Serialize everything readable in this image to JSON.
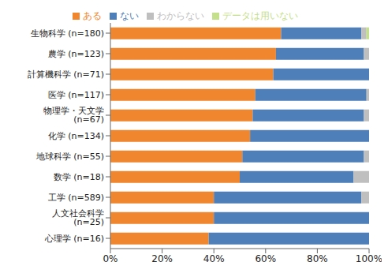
{
  "chart_data": {
    "type": "bar",
    "orientation": "horizontal",
    "stacked": true,
    "grid": false,
    "legend": "top",
    "categories": [
      "生物科学 (n=180)",
      "農学 (n=123)",
      "計算機科学 (n=71)",
      "医学 (n=117)",
      "物理学・天文学 (n=67)",
      "化学 (n=134)",
      "地球科学 (n=55)",
      "数学 (n=18)",
      "工学 (n=589)",
      "人文社会科学 (n=25)",
      "心理学 (n=16)"
    ],
    "series": [
      {
        "name": "ある",
        "color": "#f0862e",
        "values": [
          66,
          64,
          63,
          56,
          55,
          54,
          51,
          50,
          40,
          40,
          38
        ]
      },
      {
        "name": "ない",
        "color": "#4f7fb8",
        "values": [
          31,
          34,
          37,
          43,
          43,
          46,
          47,
          44,
          57,
          60,
          62
        ]
      },
      {
        "name": "わからない",
        "color": "#bfbfbf",
        "values": [
          2,
          2,
          0,
          1,
          2,
          0,
          2,
          6,
          3,
          0,
          0
        ]
      },
      {
        "name": "データは用いない",
        "color": "#c5e08a",
        "values": [
          1,
          0,
          0,
          0,
          0,
          0,
          0,
          0,
          0,
          0,
          0
        ]
      }
    ],
    "xlim": [
      0,
      100
    ],
    "xticks": [
      {
        "value": 0,
        "label": "0%"
      },
      {
        "value": 20,
        "label": "20%"
      },
      {
        "value": 40,
        "label": "40%"
      },
      {
        "value": 60,
        "label": "60%"
      },
      {
        "value": 80,
        "label": "80%"
      },
      {
        "value": 100,
        "label": "100%"
      }
    ]
  }
}
